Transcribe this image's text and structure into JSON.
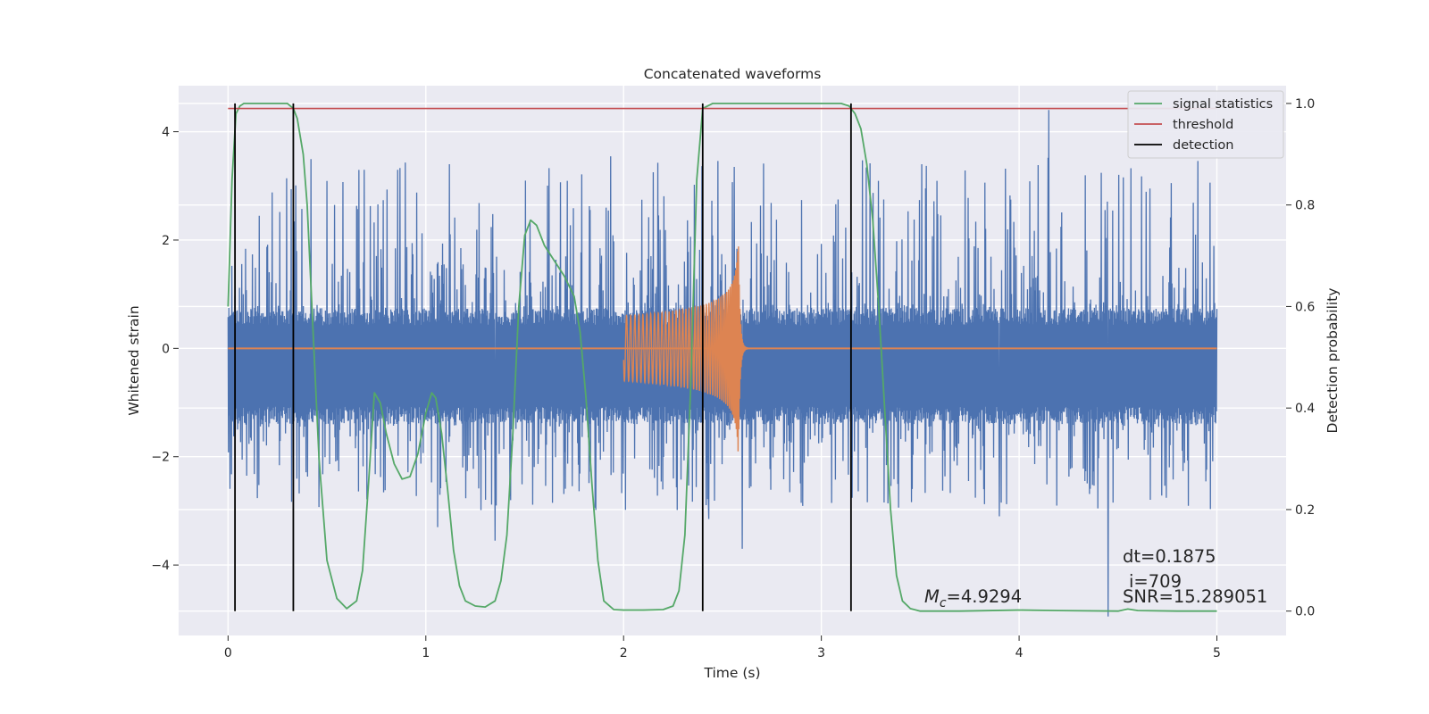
{
  "chart_data": {
    "type": "line",
    "title": "Concatenated waveforms",
    "xlabel": "Time (s)",
    "ylabel_left": "Whitened strain",
    "ylabel_right": "Detection probability",
    "xlim": [
      -0.25,
      5.35
    ],
    "ylim_left": [
      -5.3,
      4.85
    ],
    "ylim_right": [
      -0.048,
      1.035
    ],
    "x_ticks": [
      "0",
      "1",
      "2",
      "3",
      "4",
      "5"
    ],
    "y_ticks_left": [
      "−4",
      "−2",
      "0",
      "2",
      "4"
    ],
    "y_ticks_right": [
      "0.0",
      "0.2",
      "0.4",
      "0.6",
      "0.8",
      "1.0"
    ],
    "grid": true,
    "legend_position": "upper right",
    "legend": [
      {
        "label": "signal statistics",
        "color": "#55a868"
      },
      {
        "label": "threshold",
        "color": "#c44e52"
      },
      {
        "label": "detection",
        "color": "#000000"
      }
    ],
    "noisy_strain": {
      "color": "#4c72b0",
      "x_range": [
        0,
        5
      ],
      "typical_band": [
        -1.3,
        0.65
      ],
      "extremes": [
        {
          "x": 4.15,
          "y": 4.4
        },
        {
          "x": 4.45,
          "y": -4.95
        },
        {
          "x": 1.12,
          "y": 3.4
        },
        {
          "x": 2.56,
          "y": 3.35
        },
        {
          "x": 2.43,
          "y": -3.15
        },
        {
          "x": 2.6,
          "y": -3.7
        },
        {
          "x": 1.35,
          "y": -3.55
        },
        {
          "x": 1.06,
          "y": -3.3
        },
        {
          "x": 3.9,
          "y": -3.1
        }
      ]
    },
    "injected_waveform": {
      "color": "#dd8452",
      "x_range": [
        2.0,
        2.6
      ],
      "start_amplitude": 0.6,
      "peak_amplitude": 2.15,
      "peak_time": 2.58
    },
    "signal_statistics": {
      "color": "#55a868",
      "axis": "right",
      "x": [
        0,
        0.02,
        0.04,
        0.06,
        0.08,
        0.1,
        0.15,
        0.2,
        0.25,
        0.3,
        0.33,
        0.35,
        0.38,
        0.4,
        0.43,
        0.46,
        0.5,
        0.55,
        0.6,
        0.65,
        0.68,
        0.71,
        0.74,
        0.77,
        0.8,
        0.84,
        0.88,
        0.92,
        0.96,
        1.0,
        1.03,
        1.05,
        1.08,
        1.11,
        1.14,
        1.17,
        1.2,
        1.25,
        1.3,
        1.35,
        1.38,
        1.41,
        1.44,
        1.47,
        1.5,
        1.53,
        1.56,
        1.6,
        1.65,
        1.7,
        1.75,
        1.78,
        1.81,
        1.84,
        1.87,
        1.9,
        1.95,
        2.0,
        2.1,
        2.2,
        2.25,
        2.28,
        2.31,
        2.34,
        2.37,
        2.4,
        2.45,
        2.5,
        2.6,
        2.8,
        3.0,
        3.1,
        3.14,
        3.17,
        3.2,
        3.23,
        3.26,
        3.29,
        3.32,
        3.35,
        3.38,
        3.41,
        3.45,
        3.5,
        3.7,
        4.0,
        4.2,
        4.5,
        4.55,
        4.6,
        4.8,
        5.0
      ],
      "y": [
        0.6,
        0.85,
        0.98,
        0.995,
        1.0,
        1.0,
        1.0,
        1.0,
        1.0,
        1.0,
        0.99,
        0.97,
        0.9,
        0.8,
        0.55,
        0.3,
        0.1,
        0.025,
        0.005,
        0.02,
        0.08,
        0.25,
        0.43,
        0.41,
        0.35,
        0.29,
        0.26,
        0.265,
        0.31,
        0.39,
        0.43,
        0.42,
        0.35,
        0.24,
        0.12,
        0.05,
        0.02,
        0.01,
        0.008,
        0.02,
        0.06,
        0.15,
        0.35,
        0.6,
        0.74,
        0.77,
        0.76,
        0.72,
        0.69,
        0.66,
        0.62,
        0.55,
        0.42,
        0.25,
        0.1,
        0.02,
        0.003,
        0.002,
        0.002,
        0.003,
        0.01,
        0.04,
        0.15,
        0.45,
        0.85,
        0.99,
        1.0,
        1.0,
        1.0,
        1.0,
        1.0,
        1.0,
        0.995,
        0.98,
        0.95,
        0.88,
        0.77,
        0.6,
        0.4,
        0.2,
        0.07,
        0.02,
        0.005,
        0.0,
        0.0,
        0.002,
        0.001,
        0.0,
        0.004,
        0.001,
        0.0,
        0.0
      ]
    },
    "threshold": {
      "color": "#c44e52",
      "axis": "right",
      "value": 0.99,
      "x_range": [
        0,
        5
      ]
    },
    "detections": {
      "color": "#000000",
      "x": [
        0.035,
        0.33,
        2.4,
        3.15
      ]
    },
    "annotations": {
      "mc_prefix": "M",
      "mc_subscript": "c",
      "mc_value": "=4.9294",
      "dt": "dt=0.1875",
      "i": "i=709",
      "snr": "SNR=15.289051"
    }
  }
}
